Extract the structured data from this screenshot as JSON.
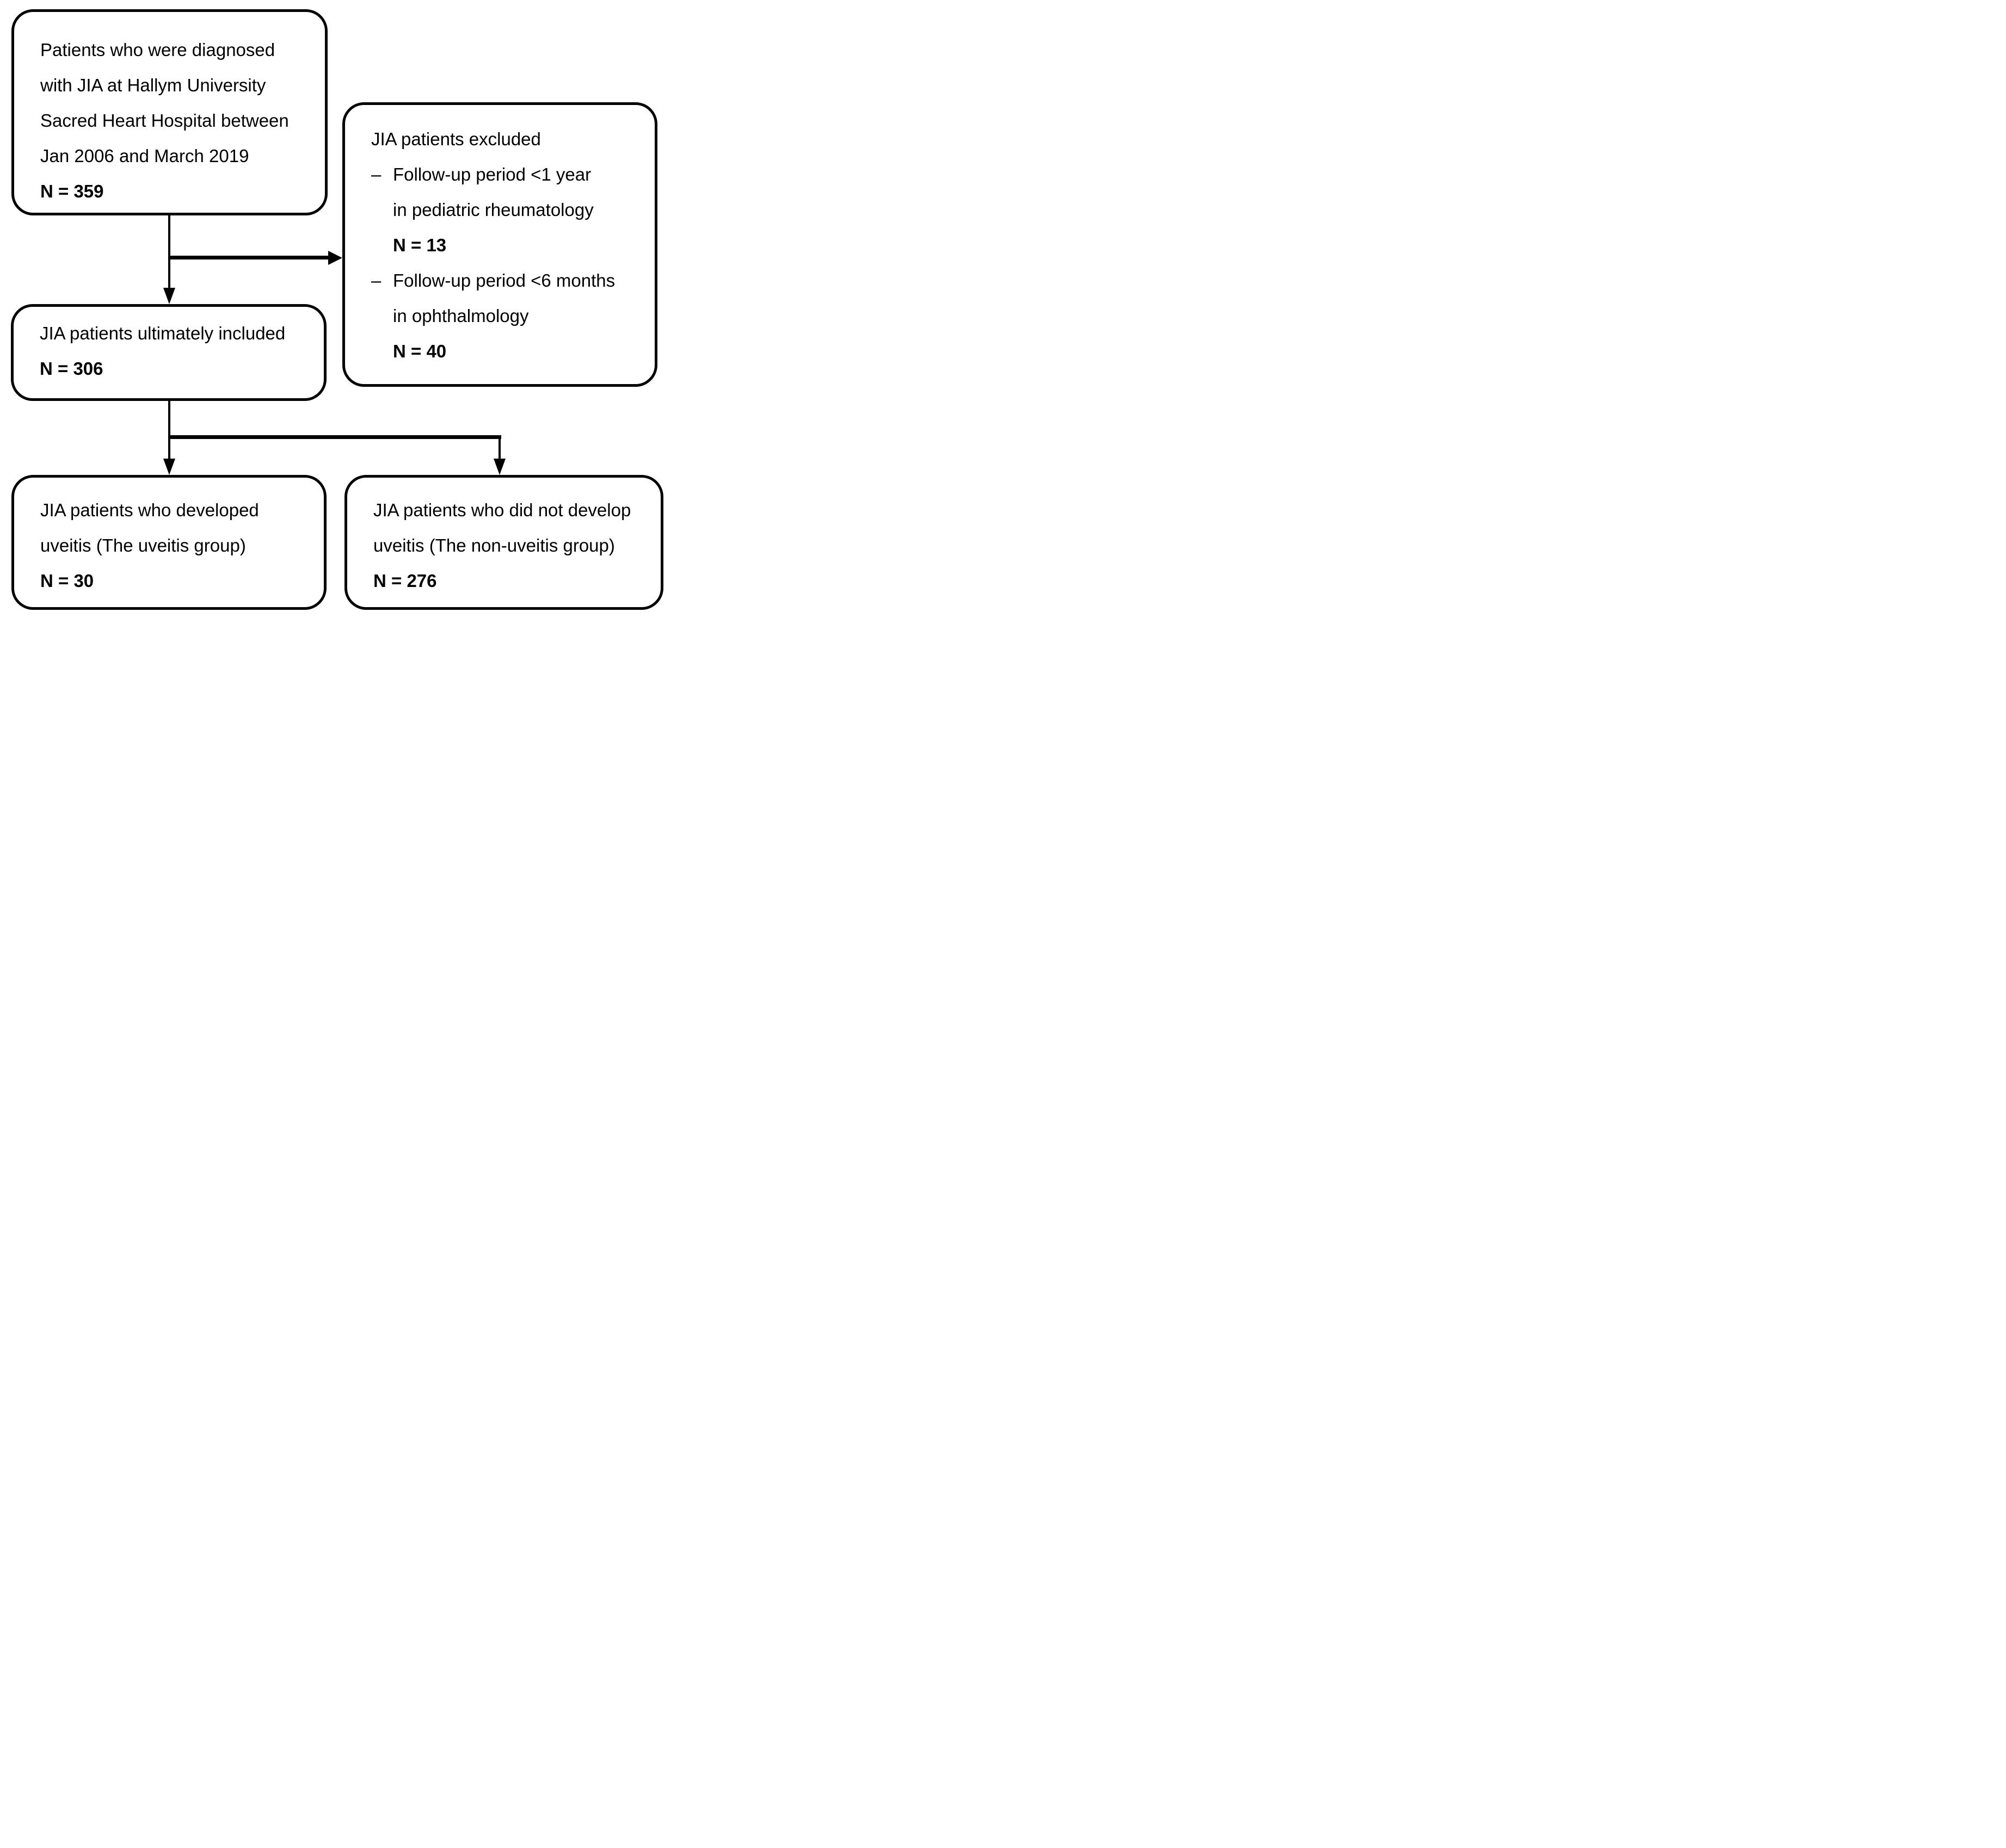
{
  "page": {
    "background": "#ffffff",
    "line_color": "#000000"
  },
  "flowchart": {
    "boxes": {
      "diagnosed": {
        "lines": [
          "Patients who were diagnosed",
          "with JIA at Hallym University",
          "Sacred Heart Hospital between",
          "Jan 2006 and March 2019"
        ],
        "count": "N = 359"
      },
      "excluded": {
        "title": "JIA patients excluded",
        "items": [
          {
            "bullet": "–",
            "line1": "Follow-up period <1 year",
            "line2": "in pediatric rheumatology",
            "count": "N = 13"
          },
          {
            "bullet": "–",
            "line1": "Follow-up period <6 months",
            "line2": "in ophthalmology",
            "count": "N = 40"
          }
        ]
      },
      "included": {
        "line1": "JIA patients ultimately included",
        "count": "N = 306"
      },
      "uveitis_group": {
        "line1": "JIA patients who developed",
        "line2": "uveitis (The uveitis group)",
        "count": "N = 30"
      },
      "non_uveitis_group": {
        "line1": "JIA patients who did not develop",
        "line2": "uveitis (The non-uveitis group)",
        "count": "N = 276"
      }
    }
  }
}
